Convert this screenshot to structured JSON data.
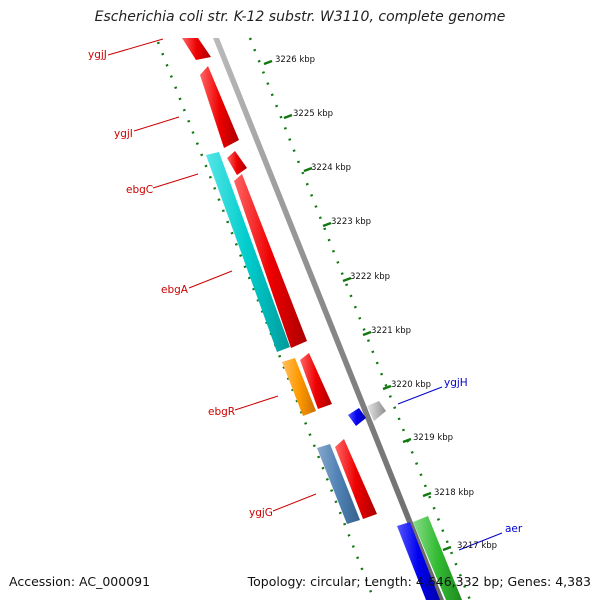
{
  "title": "Escherichia coli str. K-12 substr. W3110, complete genome",
  "footer": {
    "accession": "Accession: AC_000091",
    "summary": "Topology: circular; Length: 4,646,332 bp; Genes: 4,383"
  },
  "scale": {
    "ticks": [
      "3226 kbp",
      "3225 kbp",
      "3224 kbp",
      "3223 kbp",
      "3222 kbp",
      "3221 kbp",
      "3220 kbp",
      "3219 kbp",
      "3218 kbp",
      "3217 kbp"
    ]
  },
  "gene_labels": [
    {
      "name": "ygjJ",
      "color": "#cc0000"
    },
    {
      "name": "ygjI",
      "color": "#cc0000"
    },
    {
      "name": "ebgC",
      "color": "#cc0000"
    },
    {
      "name": "ebgA",
      "color": "#cc0000"
    },
    {
      "name": "ebgR",
      "color": "#cc0000"
    },
    {
      "name": "ygjG",
      "color": "#cc0000"
    },
    {
      "name": "ygjH",
      "color": "#0000cc"
    },
    {
      "name": "aer",
      "color": "#0000cc"
    }
  ],
  "colors": {
    "forward_strand": "#ee0000",
    "cyan_gene": "#00cccc",
    "orange_gene": "#ff9900",
    "steelblue_gene": "#4f81b4",
    "blue_gene": "#0000ee",
    "gray_gene": "#bbbbbb",
    "green_gene": "#33bb33",
    "backbone": "#888888",
    "dotted_track": "#117711"
  }
}
